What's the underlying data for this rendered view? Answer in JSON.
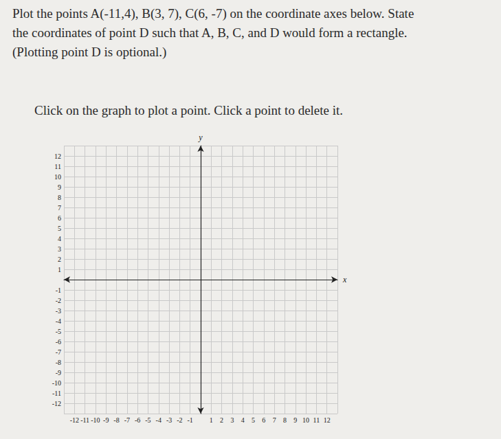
{
  "document": {
    "prompt": [
      "Plot the points A(-11,4), B(3, 7), C(6, -7) on the coordinate axes below. State",
      "the coordinates of point D such that A, B, C, and D would form a rectangle.",
      "(Plotting point D is optional.)"
    ],
    "instruction": "Click on the graph to plot a point. Click a point to delete it."
  },
  "chart_data": {
    "type": "scatter",
    "xlabel": "x",
    "ylabel": "y",
    "xlim": [
      -13,
      13
    ],
    "ylim": [
      -13,
      13
    ],
    "xticks": [
      -12,
      -11,
      -10,
      -9,
      -8,
      -7,
      -6,
      -5,
      -4,
      -3,
      -2,
      -1,
      1,
      2,
      3,
      4,
      5,
      6,
      7,
      8,
      9,
      10,
      11,
      12
    ],
    "yticks": [
      -12,
      -11,
      -10,
      -9,
      -8,
      -7,
      -6,
      -5,
      -4,
      -3,
      -2,
      -1,
      1,
      2,
      3,
      4,
      5,
      6,
      7,
      8,
      9,
      10,
      11,
      12
    ],
    "grid": true
  }
}
